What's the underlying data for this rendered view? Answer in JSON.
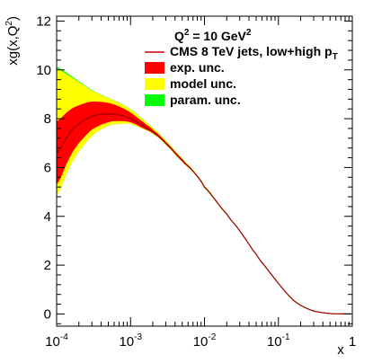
{
  "chart_data": {
    "type": "area",
    "title": "",
    "annotation": {
      "base": "Q",
      "sup": "2",
      "rest": " = 10 GeV",
      "sup2": "2"
    },
    "xlabel": "x",
    "ylabel": {
      "base": "xg(x,Q",
      "sup": "2",
      "end": ")"
    },
    "xscale": "log",
    "xlim": [
      0.0001,
      1
    ],
    "ylim": [
      -0.5,
      12.2
    ],
    "y_ticks": [
      "0",
      "2",
      "4",
      "6",
      "8",
      "10",
      "12"
    ],
    "x_ticks": [
      {
        "base": "10",
        "exp": "-4"
      },
      {
        "base": "10",
        "exp": "-3"
      },
      {
        "base": "10",
        "exp": "-2"
      },
      {
        "base": "10",
        "exp": "-1"
      },
      {
        "base": "1",
        "exp": ""
      }
    ],
    "legend": [
      {
        "label": "CMS 8 TeV jets, low+high p",
        "sub": "T",
        "kind": "line",
        "color": "#cc0000"
      },
      {
        "label": "exp. unc.",
        "kind": "box",
        "color": "#ff0000"
      },
      {
        "label": "model unc.",
        "kind": "box",
        "color": "#ffff00"
      },
      {
        "label": "param. unc.",
        "kind": "box",
        "color": "#00ff00"
      }
    ],
    "legend_position": "top-right",
    "x": [
      0.0001,
      0.00015,
      0.0002,
      0.0003,
      0.0005,
      0.0007,
      0.001,
      0.0015,
      0.002,
      0.003,
      0.005,
      0.007,
      0.01,
      0.02,
      0.03,
      0.05,
      0.07,
      0.1,
      0.15,
      0.2,
      0.3,
      0.5,
      0.7,
      1.0
    ],
    "series": [
      {
        "name": "CMS 8 TeV jets, low+high pT",
        "kind": "central",
        "values": [
          6.6,
          7.4,
          7.8,
          8.1,
          8.2,
          8.15,
          8.0,
          7.7,
          7.45,
          7.0,
          6.3,
          5.85,
          5.2,
          4.1,
          3.4,
          2.45,
          1.85,
          1.25,
          0.65,
          0.35,
          0.12,
          0.02,
          0.005,
          0.0
        ]
      },
      {
        "name": "exp. unc.",
        "kind": "band",
        "low": [
          5.3,
          6.4,
          7.0,
          7.55,
          7.85,
          7.9,
          7.85,
          7.6,
          7.4,
          6.95,
          6.25,
          5.82,
          5.17,
          4.08,
          3.39,
          2.44,
          1.84,
          1.24,
          0.64,
          0.34,
          0.11,
          0.015,
          0.003,
          0.0
        ],
        "high": [
          7.9,
          8.35,
          8.55,
          8.7,
          8.65,
          8.5,
          8.25,
          7.85,
          7.55,
          7.05,
          6.35,
          5.88,
          5.23,
          4.12,
          3.42,
          2.47,
          1.87,
          1.27,
          0.67,
          0.37,
          0.13,
          0.025,
          0.007,
          0.0
        ]
      },
      {
        "name": "model unc.",
        "kind": "band",
        "low": [
          4.85,
          6.0,
          6.65,
          7.3,
          7.7,
          7.78,
          7.78,
          7.57,
          7.38,
          6.93,
          6.24,
          5.81,
          5.16,
          4.07,
          3.38,
          2.43,
          1.83,
          1.23,
          0.63,
          0.33,
          0.1,
          0.01,
          0.002,
          0.0
        ],
        "high": [
          10.05,
          9.75,
          9.5,
          9.15,
          8.85,
          8.65,
          8.38,
          7.95,
          7.62,
          7.1,
          6.38,
          5.9,
          5.25,
          4.13,
          3.43,
          2.48,
          1.88,
          1.28,
          0.68,
          0.38,
          0.14,
          0.03,
          0.008,
          0.0
        ]
      },
      {
        "name": "param. unc.",
        "kind": "band",
        "low": [
          4.85,
          6.0,
          6.65,
          7.3,
          7.7,
          7.78,
          7.78,
          7.57,
          7.38,
          6.93,
          6.24,
          5.81,
          5.16,
          4.07,
          3.38,
          2.43,
          1.83,
          1.23,
          0.63,
          0.33,
          0.1,
          0.01,
          0.002,
          0.0
        ],
        "high": [
          10.12,
          9.8,
          9.53,
          9.17,
          8.86,
          8.66,
          8.39,
          7.96,
          7.63,
          7.1,
          6.38,
          5.9,
          5.25,
          4.13,
          3.43,
          2.48,
          1.88,
          1.28,
          0.68,
          0.38,
          0.14,
          0.03,
          0.008,
          0.0
        ]
      }
    ]
  }
}
